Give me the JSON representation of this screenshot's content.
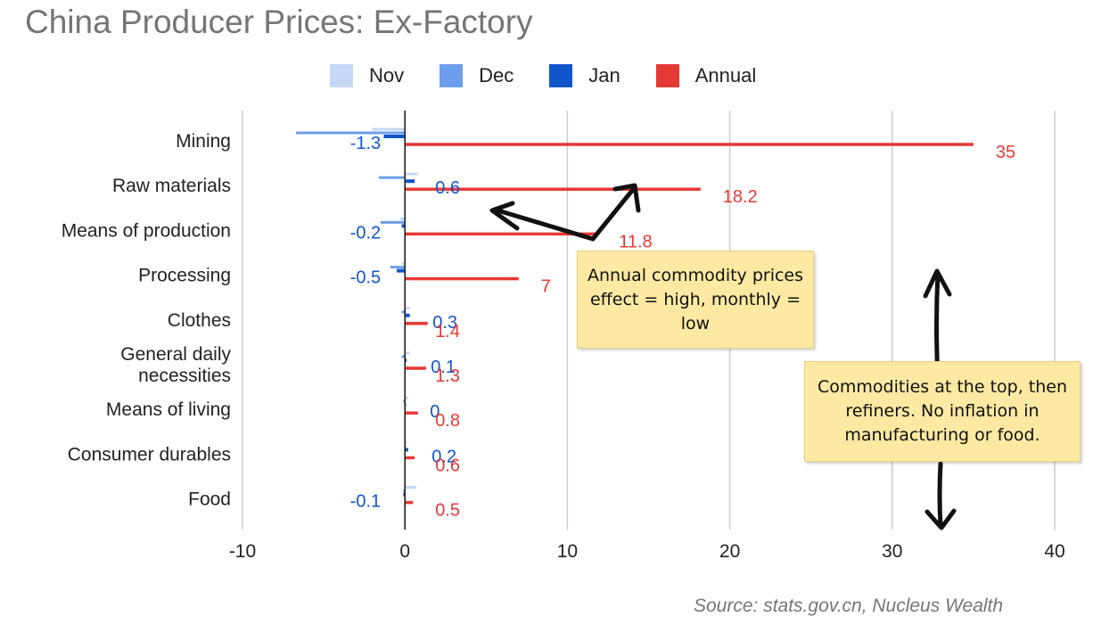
{
  "chart_data": {
    "type": "bar",
    "orientation": "horizontal",
    "title": "China Producer Prices: Ex-Factory",
    "categories": [
      "Mining",
      "Raw materials",
      "Means of production",
      "Processing",
      "Clothes",
      "General daily necessities",
      "Means of living",
      "Consumer durables",
      "Food"
    ],
    "category_lines": [
      [
        "Mining"
      ],
      [
        "Raw materials"
      ],
      [
        "Means of production"
      ],
      [
        "Processing"
      ],
      [
        "Clothes"
      ],
      [
        "General daily",
        "necessities"
      ],
      [
        "Means of living"
      ],
      [
        "Consumer durables"
      ],
      [
        "Food"
      ]
    ],
    "series": [
      {
        "name": "Nov",
        "color": "#c6d7f5",
        "values": [
          -2.0,
          0.8,
          -0.3,
          -0.2,
          0.3,
          0.3,
          0.2,
          0.1,
          0.7
        ],
        "labels": null
      },
      {
        "name": "Dec",
        "color": "#6d9eeb",
        "values": [
          -6.7,
          -1.6,
          -1.5,
          -0.9,
          -0.2,
          -0.2,
          -0.1,
          0.0,
          -0.1
        ],
        "labels": null
      },
      {
        "name": "Jan",
        "color": "#1155cc",
        "values": [
          -1.3,
          0.6,
          -0.2,
          -0.5,
          0.3,
          0.1,
          0.0,
          0.2,
          -0.1
        ],
        "labels": [
          "-1.3",
          "0.6",
          "-0.2",
          "-0.5",
          "0.3",
          "0.1",
          "0",
          "0.2",
          "-0.1"
        ]
      },
      {
        "name": "Annual",
        "color": "#e53935",
        "values": [
          35,
          18.2,
          11.8,
          7,
          1.4,
          1.3,
          0.8,
          0.6,
          0.5
        ],
        "labels": [
          "35",
          "18.2",
          "11.8",
          "7",
          "1.4",
          "1.3",
          "0.8",
          "0.6",
          "0.5"
        ]
      }
    ],
    "xlim": [
      -10,
      40
    ],
    "xticks": [
      -10,
      0,
      10,
      20,
      30,
      40
    ],
    "xtick_labels": [
      "-10",
      "0",
      "10",
      "20",
      "30",
      "40"
    ],
    "grid": true,
    "legend_position": "top"
  },
  "annotations": {
    "note1": "Annual commodity prices effect = high, monthly = low",
    "note2": "Commodities at the top, then refiners. No inflation in manufacturing or food."
  },
  "source": "Source: stats.gov.cn, Nucleus Wealth"
}
